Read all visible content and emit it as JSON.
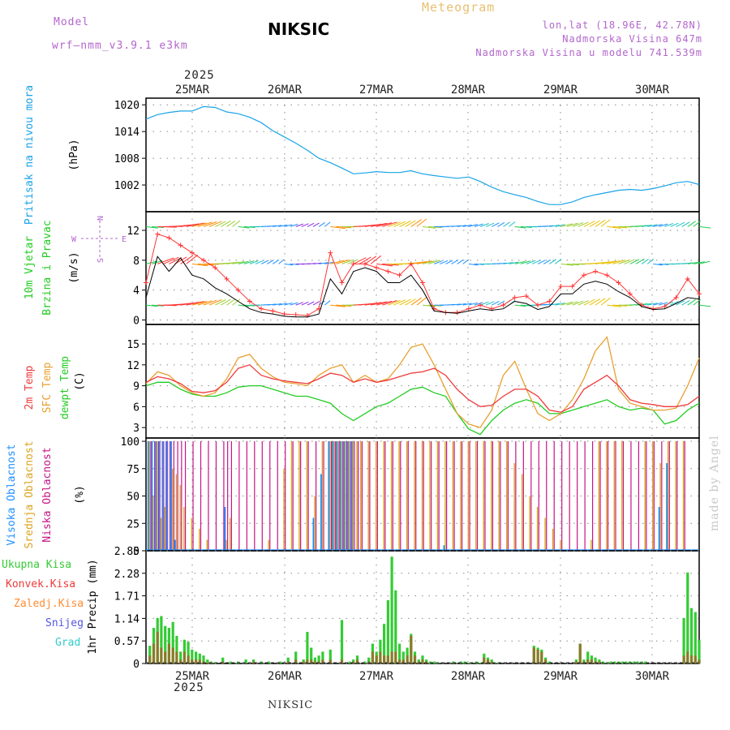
{
  "header": {
    "model_label": "Model",
    "model_name": "wrf—nmm_v3.9.1 e3km",
    "station": "NIKSIC",
    "title": "Meteogram",
    "coords": "lon,lat (18.96E, 42.78N)",
    "elevation": "Nadmorska Visina 647m",
    "model_elevation": "Nadmorska Visina u modelu 741.539m",
    "year_top": "2025",
    "year_bottom": "2025",
    "footer_station": "NIKSIC",
    "watermark": "made by Angel"
  },
  "colors": {
    "pressure": "#1aa3e8",
    "wind_speed": "#000000",
    "gust": "#ff3333",
    "t2m": "#ee3b3b",
    "sfc": "#e8a030",
    "dew": "#22cc22",
    "high_cloud": "#1e90ff",
    "mid_cloud": "#daa520",
    "low_cloud": "#c71585",
    "total_precip": "#33cc33",
    "conv_precip": "#ee3b3b",
    "frozen_precip": "#ff8c33",
    "snow": "#5555dd",
    "graupel": "#33cccc",
    "title": "#e8c070",
    "model": "#b366cc"
  },
  "chart_data": [
    {
      "type": "line",
      "name": "pressure",
      "ylabel": "Pritisak na nivou mora",
      "units": "(hPa)",
      "ylim": [
        996,
        1021.5
      ],
      "yticks": [
        1020,
        1014,
        1008,
        1002
      ],
      "x_categories": [
        "25MAR",
        "26MAR",
        "27MAR",
        "28MAR",
        "29MAR",
        "30MAR"
      ],
      "x_hours": [
        0,
        3,
        6,
        9,
        12,
        15,
        18,
        21,
        24,
        27,
        30,
        33,
        36,
        39,
        42,
        45,
        48,
        51,
        54,
        57,
        60,
        63,
        66,
        69,
        72,
        75,
        78,
        81,
        84,
        87,
        90,
        93,
        96,
        99,
        102,
        105,
        108,
        111,
        114,
        117,
        120,
        123,
        126,
        129,
        132,
        135,
        138,
        141,
        144
      ],
      "series": [
        {
          "name": "SLP",
          "values": [
            1016.8,
            1017.8,
            1018.3,
            1018.6,
            1018.6,
            1019.6,
            1019.4,
            1018.4,
            1018.0,
            1017.2,
            1016.0,
            1014.2,
            1012.8,
            1011.4,
            1009.8,
            1008.0,
            1007.0,
            1005.8,
            1004.5,
            1004.7,
            1005.0,
            1004.8,
            1004.8,
            1005.2,
            1004.5,
            1004.1,
            1003.8,
            1003.5,
            1003.8,
            1002.8,
            1001.5,
            1000.5,
            999.8,
            999.2,
            998.3,
            997.6,
            997.6,
            998.2,
            999.2,
            999.8,
            1000.3,
            1000.8,
            1001.0,
            1000.8,
            1001.2,
            1001.8,
            1002.5,
            1002.8,
            1002.1
          ]
        }
      ]
    },
    {
      "type": "line",
      "name": "wind",
      "ylabel_1": "10m Vjetar",
      "ylabel_2": "Brzina i Pravac",
      "units": "(m/s)",
      "compass": {
        "n": "N",
        "s": "S",
        "e": "E",
        "w": "W"
      },
      "ylim": [
        -0.6,
        14.5
      ],
      "yticks": [
        0,
        4,
        8,
        12
      ],
      "barb_levels": [
        12.5,
        7.5,
        2.0
      ],
      "series": [
        {
          "name": "Wind speed",
          "values": [
            3.0,
            8.5,
            6.5,
            8.3,
            6.0,
            5.5,
            4.3,
            3.5,
            2.5,
            1.5,
            1.0,
            0.8,
            0.5,
            0.4,
            0.4,
            0.8,
            5.5,
            3.5,
            6.5,
            7.0,
            6.5,
            5.0,
            5.0,
            6.0,
            4.0,
            1.2,
            1.0,
            0.9,
            1.2,
            1.5,
            1.3,
            1.5,
            2.5,
            2.2,
            1.4,
            1.8,
            3.5,
            3.5,
            4.8,
            5.2,
            4.8,
            3.8,
            3.0,
            1.8,
            1.4,
            1.5,
            2.2,
            3.0,
            2.8
          ]
        },
        {
          "name": "Gust",
          "values": [
            5.0,
            11.5,
            11.0,
            10.0,
            9.0,
            8.0,
            7.0,
            5.5,
            4.0,
            2.5,
            1.5,
            1.2,
            0.8,
            0.7,
            0.6,
            1.5,
            9.0,
            5.0,
            7.5,
            7.5,
            7.0,
            6.5,
            6.0,
            7.5,
            5.0,
            1.5,
            1.0,
            1.0,
            1.5,
            2.0,
            1.5,
            2.0,
            3.0,
            3.2,
            2.0,
            2.5,
            4.5,
            4.5,
            6.0,
            6.5,
            6.0,
            5.0,
            3.5,
            2.0,
            1.5,
            1.8,
            3.0,
            5.5,
            3.5
          ]
        }
      ]
    },
    {
      "type": "line",
      "name": "temperature",
      "ylabel_1": "2m Temp",
      "ylabel_2": "SFC Temp",
      "ylabel_3": "dewpt Temp",
      "units": "(C)",
      "ylim": [
        1.5,
        17.8
      ],
      "yticks": [
        3,
        6,
        9,
        12,
        15
      ],
      "series": [
        {
          "name": "2m Temp",
          "values": [
            9.5,
            10.3,
            10.0,
            9.3,
            8.2,
            8.0,
            8.3,
            9.5,
            11.5,
            12.0,
            10.5,
            10.0,
            9.7,
            9.5,
            9.3,
            10.0,
            10.8,
            10.5,
            9.5,
            10.0,
            9.5,
            9.8,
            10.3,
            10.8,
            11.0,
            11.5,
            10.5,
            8.5,
            7.0,
            6.0,
            6.2,
            7.5,
            8.5,
            8.5,
            7.5,
            5.5,
            5.2,
            6.0,
            8.5,
            9.5,
            10.5,
            9.0,
            7.0,
            6.5,
            6.3,
            6.0,
            6.0,
            6.3,
            7.5
          ]
        },
        {
          "name": "SFC Temp",
          "values": [
            9.3,
            11.0,
            10.5,
            9.0,
            8.0,
            7.5,
            8.0,
            10.0,
            13.0,
            13.5,
            11.5,
            10.3,
            9.5,
            9.3,
            9.0,
            10.5,
            11.5,
            12.0,
            9.5,
            10.5,
            9.5,
            10.0,
            12.0,
            14.5,
            15.0,
            12.0,
            8.5,
            5.0,
            3.5,
            3.0,
            5.5,
            10.5,
            12.5,
            8.5,
            5.0,
            4.0,
            5.0,
            7.0,
            10.0,
            14.0,
            16.0,
            8.5,
            6.5,
            6.0,
            5.5,
            5.5,
            5.8,
            9.0,
            13.0
          ]
        },
        {
          "name": "Dewpt",
          "values": [
            9.0,
            9.5,
            9.5,
            8.5,
            7.8,
            7.5,
            7.5,
            8.0,
            8.8,
            9.0,
            9.0,
            8.5,
            8.0,
            7.5,
            7.5,
            7.0,
            6.5,
            5.0,
            4.0,
            5.0,
            6.0,
            6.5,
            7.5,
            8.5,
            8.8,
            8.0,
            7.5,
            5.0,
            2.8,
            2.0,
            4.0,
            5.5,
            6.5,
            7.0,
            6.5,
            5.0,
            5.0,
            5.5,
            6.0,
            6.5,
            7.0,
            6.0,
            5.5,
            5.8,
            5.5,
            3.5,
            4.0,
            5.5,
            6.5
          ]
        }
      ]
    },
    {
      "type": "bar",
      "name": "clouds",
      "ylabel_1": "Visoka Oblacnost",
      "ylabel_2": "Srednja Oblacnost",
      "ylabel_3": "Niska Oblacnost",
      "units": "(%)",
      "ylim": [
        0,
        103
      ],
      "yticks": [
        0,
        25,
        50,
        75,
        100
      ],
      "bar_hours": [
        1,
        2,
        3,
        4,
        5,
        6,
        7,
        8,
        9,
        10,
        12,
        14,
        16,
        18,
        20,
        21,
        22,
        24,
        26,
        28,
        30,
        32,
        34,
        36,
        38,
        40,
        42,
        44,
        46,
        48,
        49,
        50,
        51,
        52,
        53,
        54,
        55,
        56,
        58,
        60,
        62,
        64,
        66,
        68,
        70,
        72,
        74,
        76,
        78,
        80,
        82,
        84,
        86,
        88,
        90,
        92,
        94,
        96,
        98,
        100,
        102,
        104,
        106,
        108,
        110,
        112,
        114,
        116,
        118,
        120,
        122,
        124,
        126,
        128,
        130,
        132,
        134,
        136,
        138,
        140
      ],
      "series": [
        {
          "name": "high",
          "values": [
            100,
            100,
            100,
            100,
            100,
            100,
            100,
            10,
            0,
            0,
            0,
            0,
            0,
            0,
            0,
            40,
            0,
            0,
            0,
            0,
            0,
            0,
            0,
            0,
            0,
            0,
            0,
            30,
            70,
            100,
            100,
            100,
            100,
            100,
            100,
            100,
            0,
            0,
            0,
            0,
            0,
            0,
            0,
            0,
            0,
            0,
            0,
            0,
            5,
            0,
            0,
            0,
            0,
            0,
            0,
            0,
            0,
            0,
            0,
            0,
            0,
            0,
            0,
            0,
            0,
            0,
            0,
            0,
            0,
            0,
            0,
            0,
            0,
            0,
            0,
            0,
            40,
            80,
            0,
            0
          ]
        },
        {
          "name": "mid",
          "values": [
            100,
            50,
            100,
            30,
            40,
            0,
            75,
            70,
            60,
            40,
            30,
            20,
            10,
            0,
            0,
            10,
            30,
            0,
            0,
            0,
            0,
            10,
            0,
            75,
            100,
            100,
            100,
            50,
            100,
            100,
            100,
            100,
            100,
            100,
            100,
            100,
            100,
            100,
            100,
            100,
            100,
            100,
            100,
            100,
            100,
            100,
            100,
            100,
            100,
            100,
            100,
            100,
            100,
            100,
            100,
            100,
            100,
            80,
            70,
            50,
            40,
            30,
            20,
            10,
            0,
            0,
            0,
            10,
            100,
            100,
            100,
            100,
            0,
            0,
            100,
            100,
            80,
            100,
            100,
            100
          ]
        },
        {
          "name": "low",
          "values": [
            100,
            100,
            100,
            100,
            100,
            100,
            100,
            100,
            100,
            100,
            100,
            100,
            100,
            100,
            100,
            100,
            100,
            100,
            100,
            100,
            100,
            100,
            100,
            100,
            100,
            100,
            100,
            100,
            100,
            100,
            100,
            100,
            100,
            100,
            100,
            100,
            100,
            100,
            100,
            100,
            100,
            100,
            100,
            100,
            100,
            100,
            100,
            100,
            100,
            100,
            100,
            100,
            100,
            100,
            100,
            100,
            100,
            100,
            100,
            100,
            100,
            100,
            100,
            100,
            100,
            100,
            100,
            100,
            100,
            100,
            100,
            100,
            100,
            100,
            100,
            100,
            100,
            100,
            100,
            100
          ]
        }
      ]
    },
    {
      "type": "bar",
      "name": "precipitation",
      "ylabel": "1hr Precip",
      "units": "(mm)",
      "legend": [
        "Ukupna Kisa",
        "Konvek.Kisa",
        "Zaledj.Kisa",
        "Snijeg",
        "Grad"
      ],
      "ylim": [
        0,
        2.85
      ],
      "yticks": [
        "0",
        "0.57",
        "1.14",
        "1.71",
        "2.28",
        "2.85"
      ],
      "bar_hours": [
        1,
        2,
        3,
        4,
        5,
        6,
        7,
        8,
        9,
        10,
        11,
        12,
        13,
        14,
        15,
        16,
        17,
        18,
        20,
        22,
        24,
        26,
        28,
        30,
        32,
        35,
        37,
        39,
        41,
        42,
        43,
        44,
        45,
        46,
        48,
        51,
        53,
        54,
        55,
        57,
        58,
        59,
        60,
        61,
        62,
        63,
        64,
        65,
        66,
        67,
        68,
        69,
        70,
        71,
        72,
        73,
        74,
        75,
        76,
        80,
        82,
        83,
        84,
        86,
        87,
        88,
        89,
        90,
        91,
        101,
        102,
        103,
        104,
        105,
        112,
        113,
        114,
        115,
        116,
        117,
        118,
        119,
        120,
        121,
        122,
        123,
        124,
        125,
        126,
        127,
        128,
        129,
        130,
        140,
        141,
        142,
        143,
        144
      ],
      "series": [
        {
          "name": "total",
          "values": [
            0.45,
            0.9,
            1.15,
            1.2,
            0.95,
            0.9,
            1.05,
            0.7,
            0.3,
            0.6,
            0.55,
            0.35,
            0.3,
            0.25,
            0.2,
            0.1,
            0.05,
            0.02,
            0.15,
            0.05,
            0.05,
            0.1,
            0.1,
            0.05,
            0.05,
            0.05,
            0.15,
            0.3,
            0.1,
            0.8,
            0.4,
            0.15,
            0.2,
            0.3,
            0.35,
            1.1,
            0.05,
            0.1,
            0.2,
            0.05,
            0.15,
            0.5,
            0.3,
            0.6,
            1.0,
            1.6,
            2.7,
            1.85,
            0.5,
            0.3,
            0.4,
            0.75,
            0.3,
            0.1,
            0.2,
            0.1,
            0.05,
            0.05,
            0.02,
            0.05,
            0.05,
            0.05,
            0.02,
            0.05,
            0.02,
            0.25,
            0.15,
            0.1,
            0.02,
            0.45,
            0.4,
            0.35,
            0.15,
            0.05,
            0.1,
            0.5,
            0.1,
            0.3,
            0.2,
            0.15,
            0.1,
            0.05,
            0.02,
            0.05,
            0.05,
            0.05,
            0.05,
            0.05,
            0.05,
            0.05,
            0.05,
            0.05,
            0.05,
            1.15,
            2.3,
            1.4,
            1.3,
            0.6
          ]
        },
        {
          "name": "convective",
          "values": [
            0.2,
            0.5,
            0.8,
            0.4,
            0.3,
            0.5,
            0.4,
            0.3,
            0.1,
            0.3,
            0.2,
            0.1,
            0.1,
            0.1,
            0.05,
            0.02,
            0.02,
            0.0,
            0.05,
            0.0,
            0.0,
            0.0,
            0.05,
            0.0,
            0.0,
            0.0,
            0.05,
            0.1,
            0.05,
            0.1,
            0.1,
            0.05,
            0.05,
            0.1,
            0.1,
            0.1,
            0.0,
            0.05,
            0.1,
            0.0,
            0.05,
            0.3,
            0.2,
            0.3,
            0.2,
            0.2,
            0.3,
            0.3,
            0.1,
            0.1,
            0.2,
            0.7,
            0.2,
            0.05,
            0.1,
            0.05,
            0.0,
            0.0,
            0.0,
            0.0,
            0.0,
            0.0,
            0.0,
            0.0,
            0.0,
            0.15,
            0.1,
            0.05,
            0.0,
            0.4,
            0.35,
            0.3,
            0.1,
            0.0,
            0.05,
            0.5,
            0.05,
            0.1,
            0.1,
            0.05,
            0.05,
            0.0,
            0.0,
            0.0,
            0.0,
            0.0,
            0.0,
            0.0,
            0.0,
            0.0,
            0.0,
            0.0,
            0.0,
            0.2,
            0.3,
            0.2,
            0.2,
            0.1
          ]
        }
      ]
    }
  ]
}
